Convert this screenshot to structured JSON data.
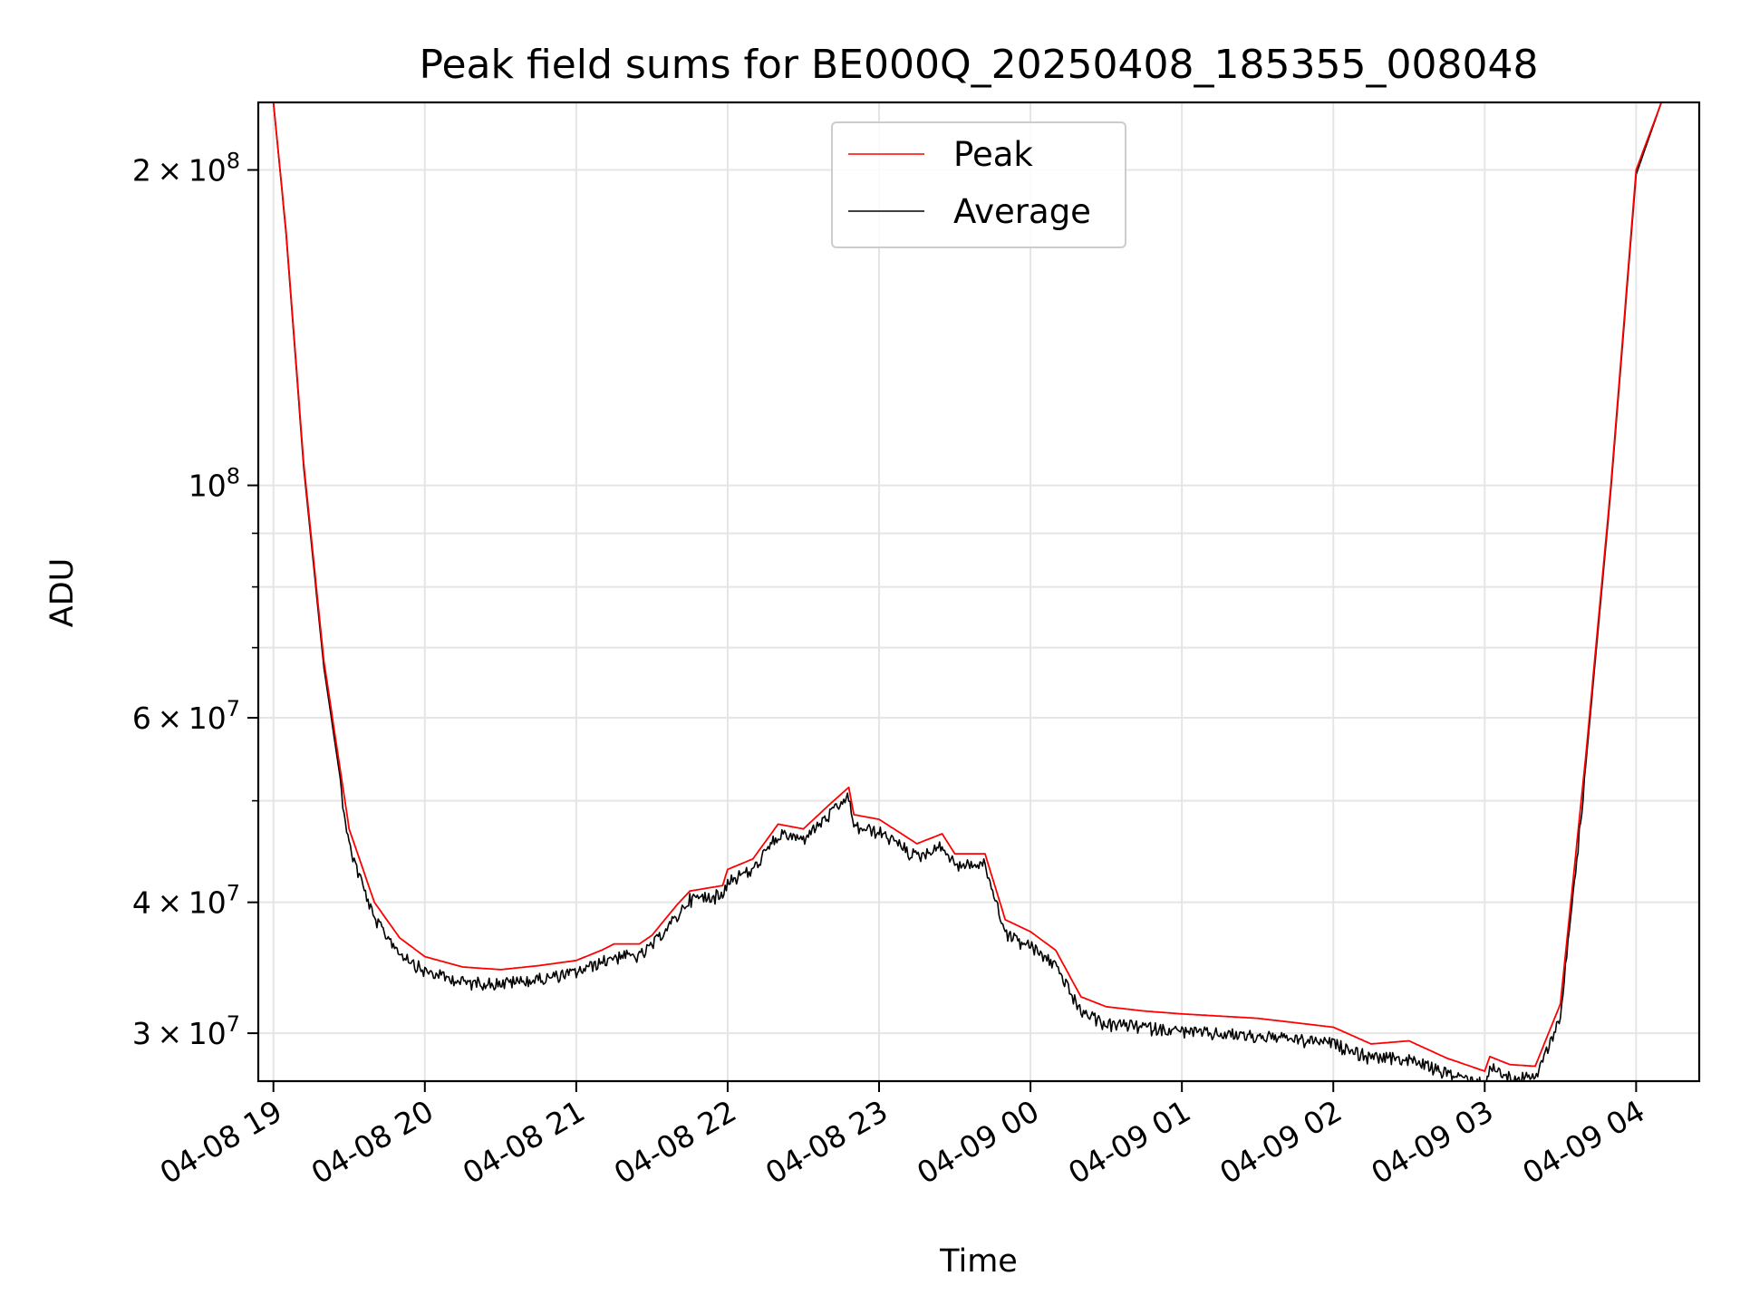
{
  "chart_data": {
    "type": "line",
    "title": "Peak field sums for BE000Q_20250408_185355_008048",
    "xlabel": "Time",
    "ylabel": "ADU",
    "y_scale": "log",
    "ylim": [
      27000000,
      232000000
    ],
    "xlim": [
      "2025-04-08 18:54",
      "2025-04-09 04:25"
    ],
    "grid": true,
    "legend": {
      "placement": "top-center"
    },
    "x_ticks": [
      "04-08 19",
      "04-08 20",
      "04-08 21",
      "04-08 22",
      "04-08 23",
      "04-09 00",
      "04-09 01",
      "04-09 02",
      "04-09 03",
      "04-09 04"
    ],
    "x_tick_times": [
      "2025-04-08 19:00",
      "2025-04-08 20:00",
      "2025-04-08 21:00",
      "2025-04-08 22:00",
      "2025-04-08 23:00",
      "2025-04-09 00:00",
      "2025-04-09 01:00",
      "2025-04-09 02:00",
      "2025-04-09 03:00",
      "2025-04-09 04:00"
    ],
    "y_ticks": [
      {
        "value": 200000000,
        "mantissa": "2",
        "exp": "8"
      },
      {
        "value": 100000000,
        "mantissa": "",
        "exp": "8"
      },
      {
        "value": 60000000,
        "mantissa": "6",
        "exp": "7"
      },
      {
        "value": 40000000,
        "mantissa": "4",
        "exp": "7"
      },
      {
        "value": 30000000,
        "mantissa": "3",
        "exp": "7"
      }
    ],
    "y_minor_ticks": [
      50000000,
      70000000,
      80000000,
      90000000
    ],
    "series": [
      {
        "name": "Peak",
        "color": "#ff0000",
        "x": [
          "2025-04-08 18:54",
          "2025-04-08 19:00",
          "2025-04-08 19:05",
          "2025-04-08 19:12",
          "2025-04-08 19:20",
          "2025-04-08 19:30",
          "2025-04-08 19:40",
          "2025-04-08 19:50",
          "2025-04-08 20:00",
          "2025-04-08 20:15",
          "2025-04-08 20:30",
          "2025-04-08 20:45",
          "2025-04-08 21:00",
          "2025-04-08 21:10",
          "2025-04-08 21:15",
          "2025-04-08 21:25",
          "2025-04-08 21:30",
          "2025-04-08 21:40",
          "2025-04-08 21:45",
          "2025-04-08 21:58",
          "2025-04-08 22:00",
          "2025-04-08 22:10",
          "2025-04-08 22:20",
          "2025-04-08 22:30",
          "2025-04-08 22:40",
          "2025-04-08 22:48",
          "2025-04-08 22:50",
          "2025-04-08 23:00",
          "2025-04-08 23:15",
          "2025-04-08 23:25",
          "2025-04-08 23:30",
          "2025-04-08 23:42",
          "2025-04-08 23:50",
          "2025-04-09 00:00",
          "2025-04-09 00:10",
          "2025-04-09 00:20",
          "2025-04-09 00:30",
          "2025-04-09 00:45",
          "2025-04-09 01:00",
          "2025-04-09 01:30",
          "2025-04-09 02:00",
          "2025-04-09 02:15",
          "2025-04-09 02:30",
          "2025-04-09 02:45",
          "2025-04-09 03:00",
          "2025-04-09 03:02",
          "2025-04-09 03:10",
          "2025-04-09 03:20",
          "2025-04-09 03:30",
          "2025-04-09 03:40",
          "2025-04-09 03:50",
          "2025-04-09 04:00",
          "2025-04-09 04:10",
          "2025-04-09 04:25"
        ],
        "values": [
          232000000,
          232000000,
          175000000,
          105000000,
          68000000,
          47000000,
          40000000,
          37000000,
          35500000,
          34700000,
          34500000,
          34800000,
          35200000,
          36000000,
          36500000,
          36500000,
          37200000,
          39800000,
          41000000,
          41500000,
          43000000,
          44000000,
          47500000,
          47000000,
          49500000,
          51500000,
          48500000,
          48000000,
          45500000,
          46500000,
          44500000,
          44500000,
          38500000,
          37500000,
          36000000,
          32500000,
          31800000,
          31500000,
          31300000,
          31000000,
          30400000,
          29300000,
          29500000,
          28400000,
          27600000,
          28500000,
          28000000,
          27900000,
          32000000,
          55000000,
          100000000,
          200000000,
          232000000,
          232000000
        ]
      },
      {
        "name": "Average",
        "color": "#000000",
        "x": [
          "2025-04-08 18:54",
          "2025-04-08 19:00",
          "2025-04-08 19:05",
          "2025-04-08 19:12",
          "2025-04-08 19:20",
          "2025-04-08 19:30",
          "2025-04-08 19:40",
          "2025-04-08 19:50",
          "2025-04-08 20:00",
          "2025-04-08 20:15",
          "2025-04-08 20:30",
          "2025-04-08 20:45",
          "2025-04-08 21:00",
          "2025-04-08 21:10",
          "2025-04-08 21:15",
          "2025-04-08 21:25",
          "2025-04-08 21:30",
          "2025-04-08 21:40",
          "2025-04-08 21:45",
          "2025-04-08 21:58",
          "2025-04-08 22:00",
          "2025-04-08 22:10",
          "2025-04-08 22:20",
          "2025-04-08 22:30",
          "2025-04-08 22:40",
          "2025-04-08 22:48",
          "2025-04-08 22:50",
          "2025-04-08 23:00",
          "2025-04-08 23:15",
          "2025-04-08 23:25",
          "2025-04-08 23:30",
          "2025-04-08 23:42",
          "2025-04-08 23:50",
          "2025-04-09 00:00",
          "2025-04-09 00:10",
          "2025-04-09 00:20",
          "2025-04-09 00:30",
          "2025-04-09 00:45",
          "2025-04-09 01:00",
          "2025-04-09 01:30",
          "2025-04-09 02:00",
          "2025-04-09 02:15",
          "2025-04-09 02:30",
          "2025-04-09 02:45",
          "2025-04-09 03:00",
          "2025-04-09 03:02",
          "2025-04-09 03:10",
          "2025-04-09 03:20",
          "2025-04-09 03:30",
          "2025-04-09 03:40",
          "2025-04-09 03:50",
          "2025-04-09 04:00",
          "2025-04-09 04:10",
          "2025-04-09 04:25"
        ],
        "values": [
          232000000,
          232000000,
          174000000,
          104000000,
          67000000,
          46000000,
          39000000,
          36300000,
          34800000,
          34000000,
          33900000,
          34200000,
          34700000,
          35500000,
          36000000,
          36000000,
          36800000,
          39300000,
          40800000,
          41200000,
          42500000,
          43500000,
          47000000,
          46500000,
          49000000,
          51000000,
          47800000,
          47300000,
          44800000,
          45800000,
          44000000,
          44000000,
          37800000,
          36800000,
          35300000,
          31800000,
          31000000,
          30800000,
          30500000,
          30200000,
          29700000,
          28800000,
          28700000,
          27800000,
          27200000,
          28200000,
          27600000,
          27500000,
          31500000,
          54000000,
          99000000,
          198000000,
          232000000,
          232000000
        ],
        "noise": true
      }
    ]
  }
}
